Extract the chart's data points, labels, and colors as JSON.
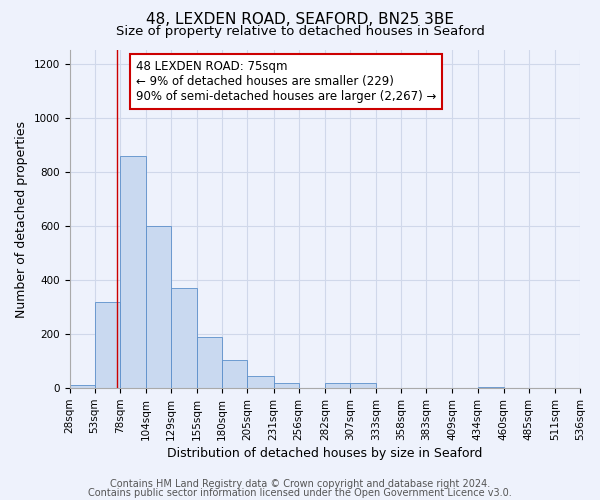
{
  "title": "48, LEXDEN ROAD, SEAFORD, BN25 3BE",
  "subtitle": "Size of property relative to detached houses in Seaford",
  "xlabel": "Distribution of detached houses by size in Seaford",
  "ylabel": "Number of detached properties",
  "bar_edges": [
    28,
    53,
    78,
    104,
    129,
    155,
    180,
    205,
    231,
    256,
    282,
    307,
    333,
    358,
    383,
    409,
    434,
    460,
    485,
    511,
    536
  ],
  "bar_heights": [
    13,
    320,
    860,
    600,
    370,
    188,
    104,
    46,
    20,
    0,
    20,
    20,
    0,
    0,
    0,
    0,
    5,
    0,
    0,
    0
  ],
  "bar_color": "#c9d9f0",
  "bar_edge_color": "#5b8fca",
  "vline_x": 75,
  "vline_color": "#cc0000",
  "annotation_line1": "48 LEXDEN ROAD: 75sqm",
  "annotation_line2": "← 9% of detached houses are smaller (229)",
  "annotation_line3": "90% of semi-detached houses are larger (2,267) →",
  "ylim": [
    0,
    1250
  ],
  "yticks": [
    0,
    200,
    400,
    600,
    800,
    1000,
    1200
  ],
  "tick_labels": [
    "28sqm",
    "53sqm",
    "78sqm",
    "104sqm",
    "129sqm",
    "155sqm",
    "180sqm",
    "205sqm",
    "231sqm",
    "256sqm",
    "282sqm",
    "307sqm",
    "333sqm",
    "358sqm",
    "383sqm",
    "409sqm",
    "434sqm",
    "460sqm",
    "485sqm",
    "511sqm",
    "536sqm"
  ],
  "footer_line1": "Contains HM Land Registry data © Crown copyright and database right 2024.",
  "footer_line2": "Contains public sector information licensed under the Open Government Licence v3.0.",
  "bg_color": "#eef2fc",
  "plot_bg_color": "#eef2fc",
  "grid_color": "#d0d8ea",
  "title_fontsize": 11,
  "subtitle_fontsize": 9.5,
  "axis_label_fontsize": 9,
  "tick_fontsize": 7.5,
  "footer_fontsize": 7
}
